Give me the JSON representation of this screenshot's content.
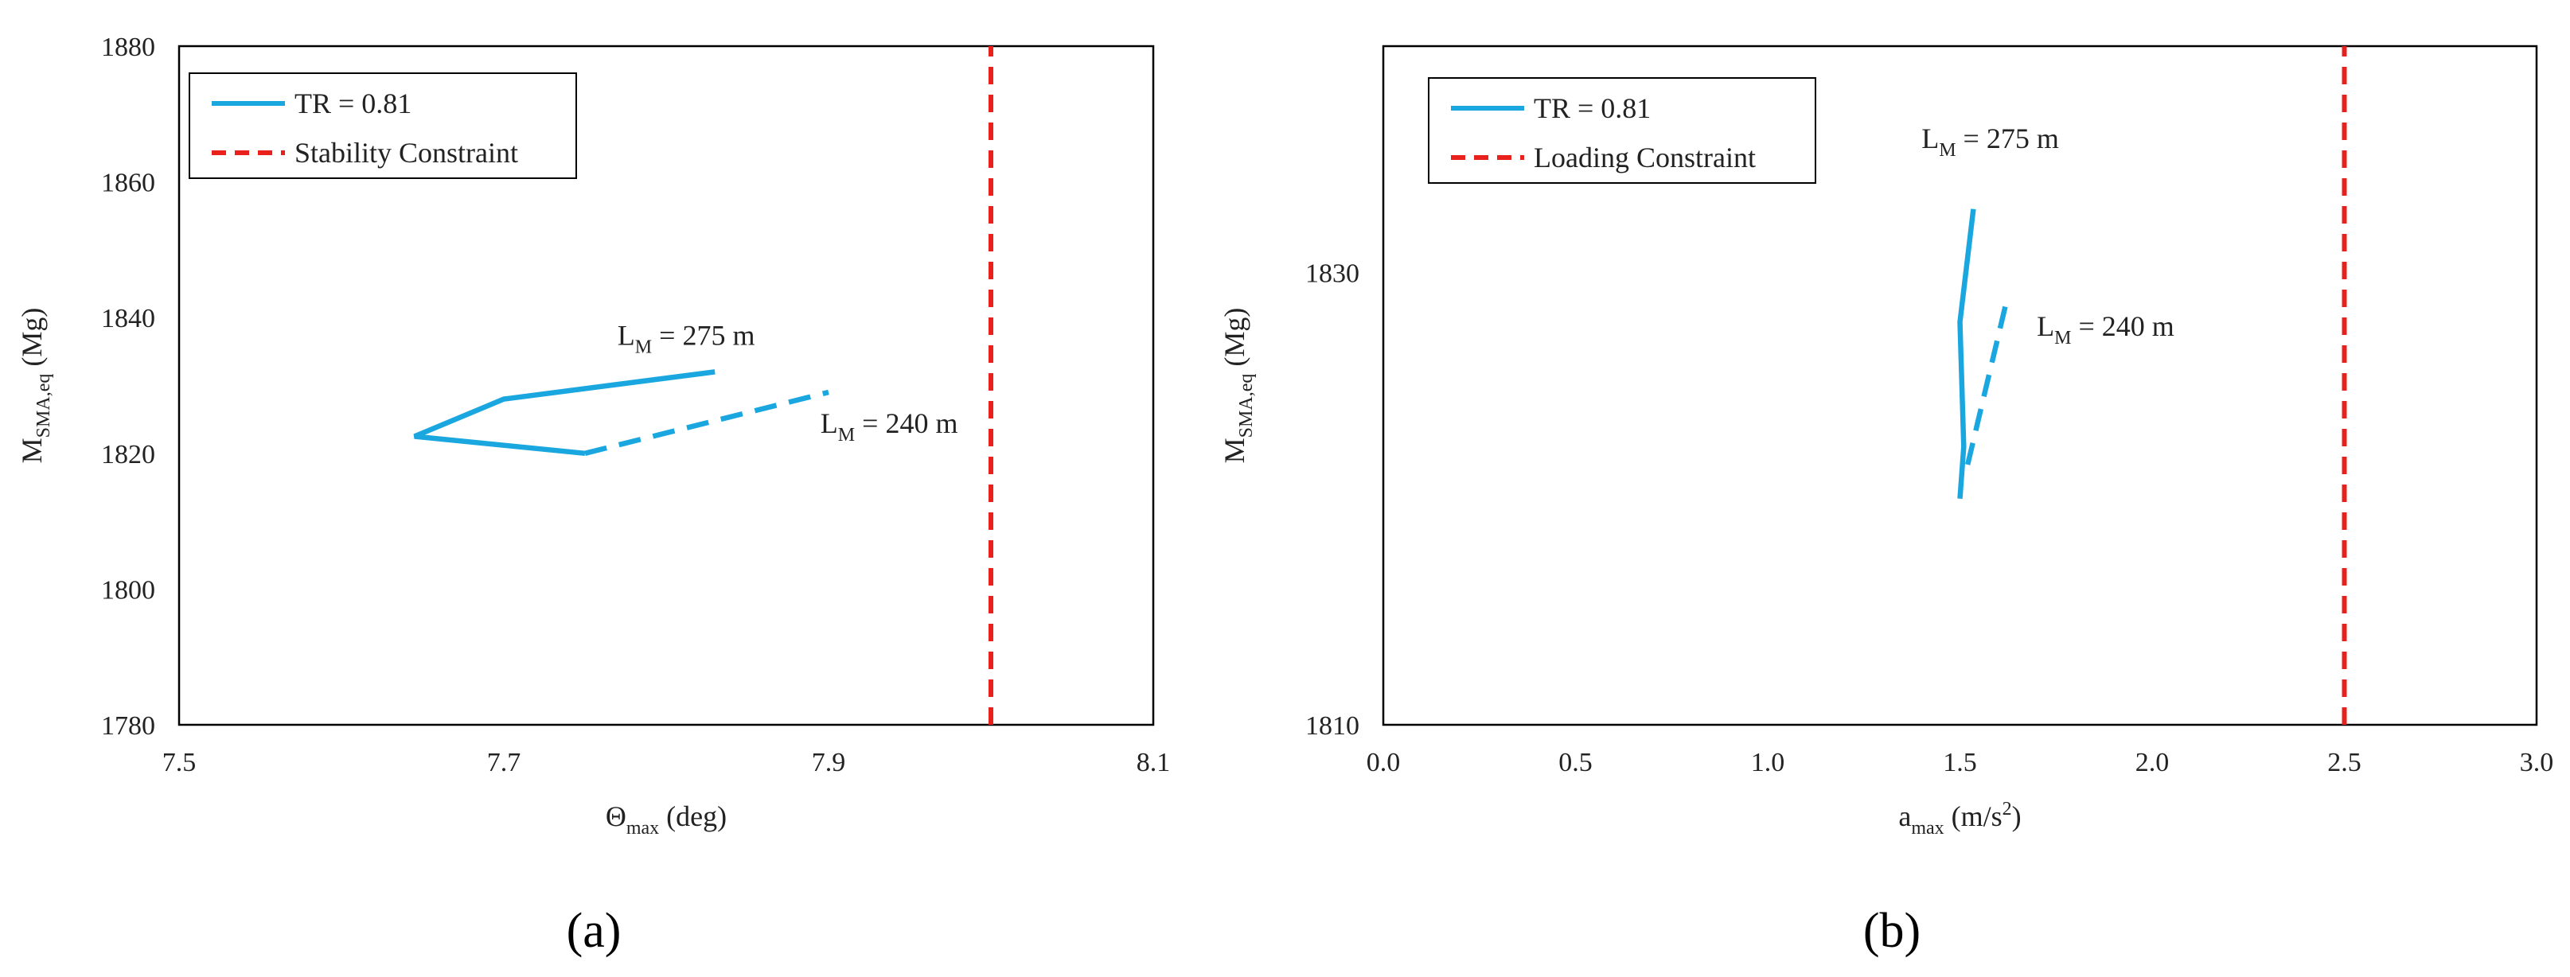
{
  "chart_data": [
    {
      "type": "line",
      "panel_label": "(a)",
      "xlabel": {
        "main": "Θ",
        "sub": "max",
        "rest": " (deg)"
      },
      "ylabel": {
        "main": "M",
        "sub": "SMA,eq",
        "rest": "  (Mg)"
      },
      "xlim": [
        7.5,
        8.1
      ],
      "ylim": [
        1780,
        1880
      ],
      "xticks": [
        "7.5",
        "7.7",
        "7.9",
        "8.1"
      ],
      "yticks": [
        "1780",
        "1800",
        "1820",
        "1840",
        "1860",
        "1880"
      ],
      "legend_position": "top-left",
      "legend": [
        {
          "label": "TR = 0.81",
          "color": "#1aa7e0",
          "style": "solid"
        },
        {
          "label": "Stability Constraint",
          "color": "#e8211d",
          "style": "dashed"
        }
      ],
      "series": [
        {
          "color": "#1aa7e0",
          "style": "solid",
          "x": [
            7.83,
            7.7,
            7.645,
            7.75
          ],
          "y": [
            1832,
            1828,
            1822.5,
            1820
          ]
        },
        {
          "color": "#1aa7e0",
          "style": "dashed",
          "x": [
            7.75,
            7.9
          ],
          "y": [
            1820,
            1829
          ]
        },
        {
          "color": "#e8211d",
          "style": "dashed",
          "x": [
            8.0,
            8.0
          ],
          "y": [
            1780,
            1880
          ]
        }
      ],
      "annotations": [
        {
          "main": "L",
          "sub": "M",
          "rest": " = 275 m",
          "x": 7.77,
          "y": 1836
        },
        {
          "main": "L",
          "sub": "M",
          "rest": " = 240 m",
          "x": 7.895,
          "y": 1823
        }
      ]
    },
    {
      "type": "line",
      "panel_label": "(b)",
      "xlabel": {
        "main": "a",
        "sub": "max",
        "rest": " (m/s",
        "sup": "2",
        "end": ")"
      },
      "ylabel": {
        "main": "M",
        "sub": "SMA,eq",
        "rest": "  (Mg)"
      },
      "xlim": [
        0.0,
        3.0
      ],
      "ylim": [
        1810,
        1840
      ],
      "xticks": [
        "0.0",
        "0.5",
        "1.0",
        "1.5",
        "2.0",
        "2.5",
        "3.0"
      ],
      "yticks": [
        "1810",
        "1830"
      ],
      "legend_position": "top-left",
      "legend": [
        {
          "label": "TR = 0.81",
          "color": "#1aa7e0",
          "style": "solid"
        },
        {
          "label": "Loading Constraint",
          "color": "#e8211d",
          "style": "dashed"
        }
      ],
      "series": [
        {
          "color": "#1aa7e0",
          "style": "solid",
          "x": [
            1.535,
            1.5,
            1.51,
            1.5
          ],
          "y": [
            1832.8,
            1827.8,
            1822.3,
            1820
          ]
        },
        {
          "color": "#1aa7e0",
          "style": "dashed",
          "x": [
            1.52,
            1.625
          ],
          "y": [
            1821.5,
            1829
          ]
        },
        {
          "color": "#e8211d",
          "style": "dashed",
          "x": [
            2.5,
            2.5
          ],
          "y": [
            1810,
            1840
          ]
        }
      ],
      "annotations": [
        {
          "main": "L",
          "sub": "M",
          "rest": " = 275 m",
          "x": 1.4,
          "y": 1835.5
        },
        {
          "main": "L",
          "sub": "M",
          "rest": " = 240 m",
          "x": 1.7,
          "y": 1827.2
        }
      ]
    }
  ]
}
